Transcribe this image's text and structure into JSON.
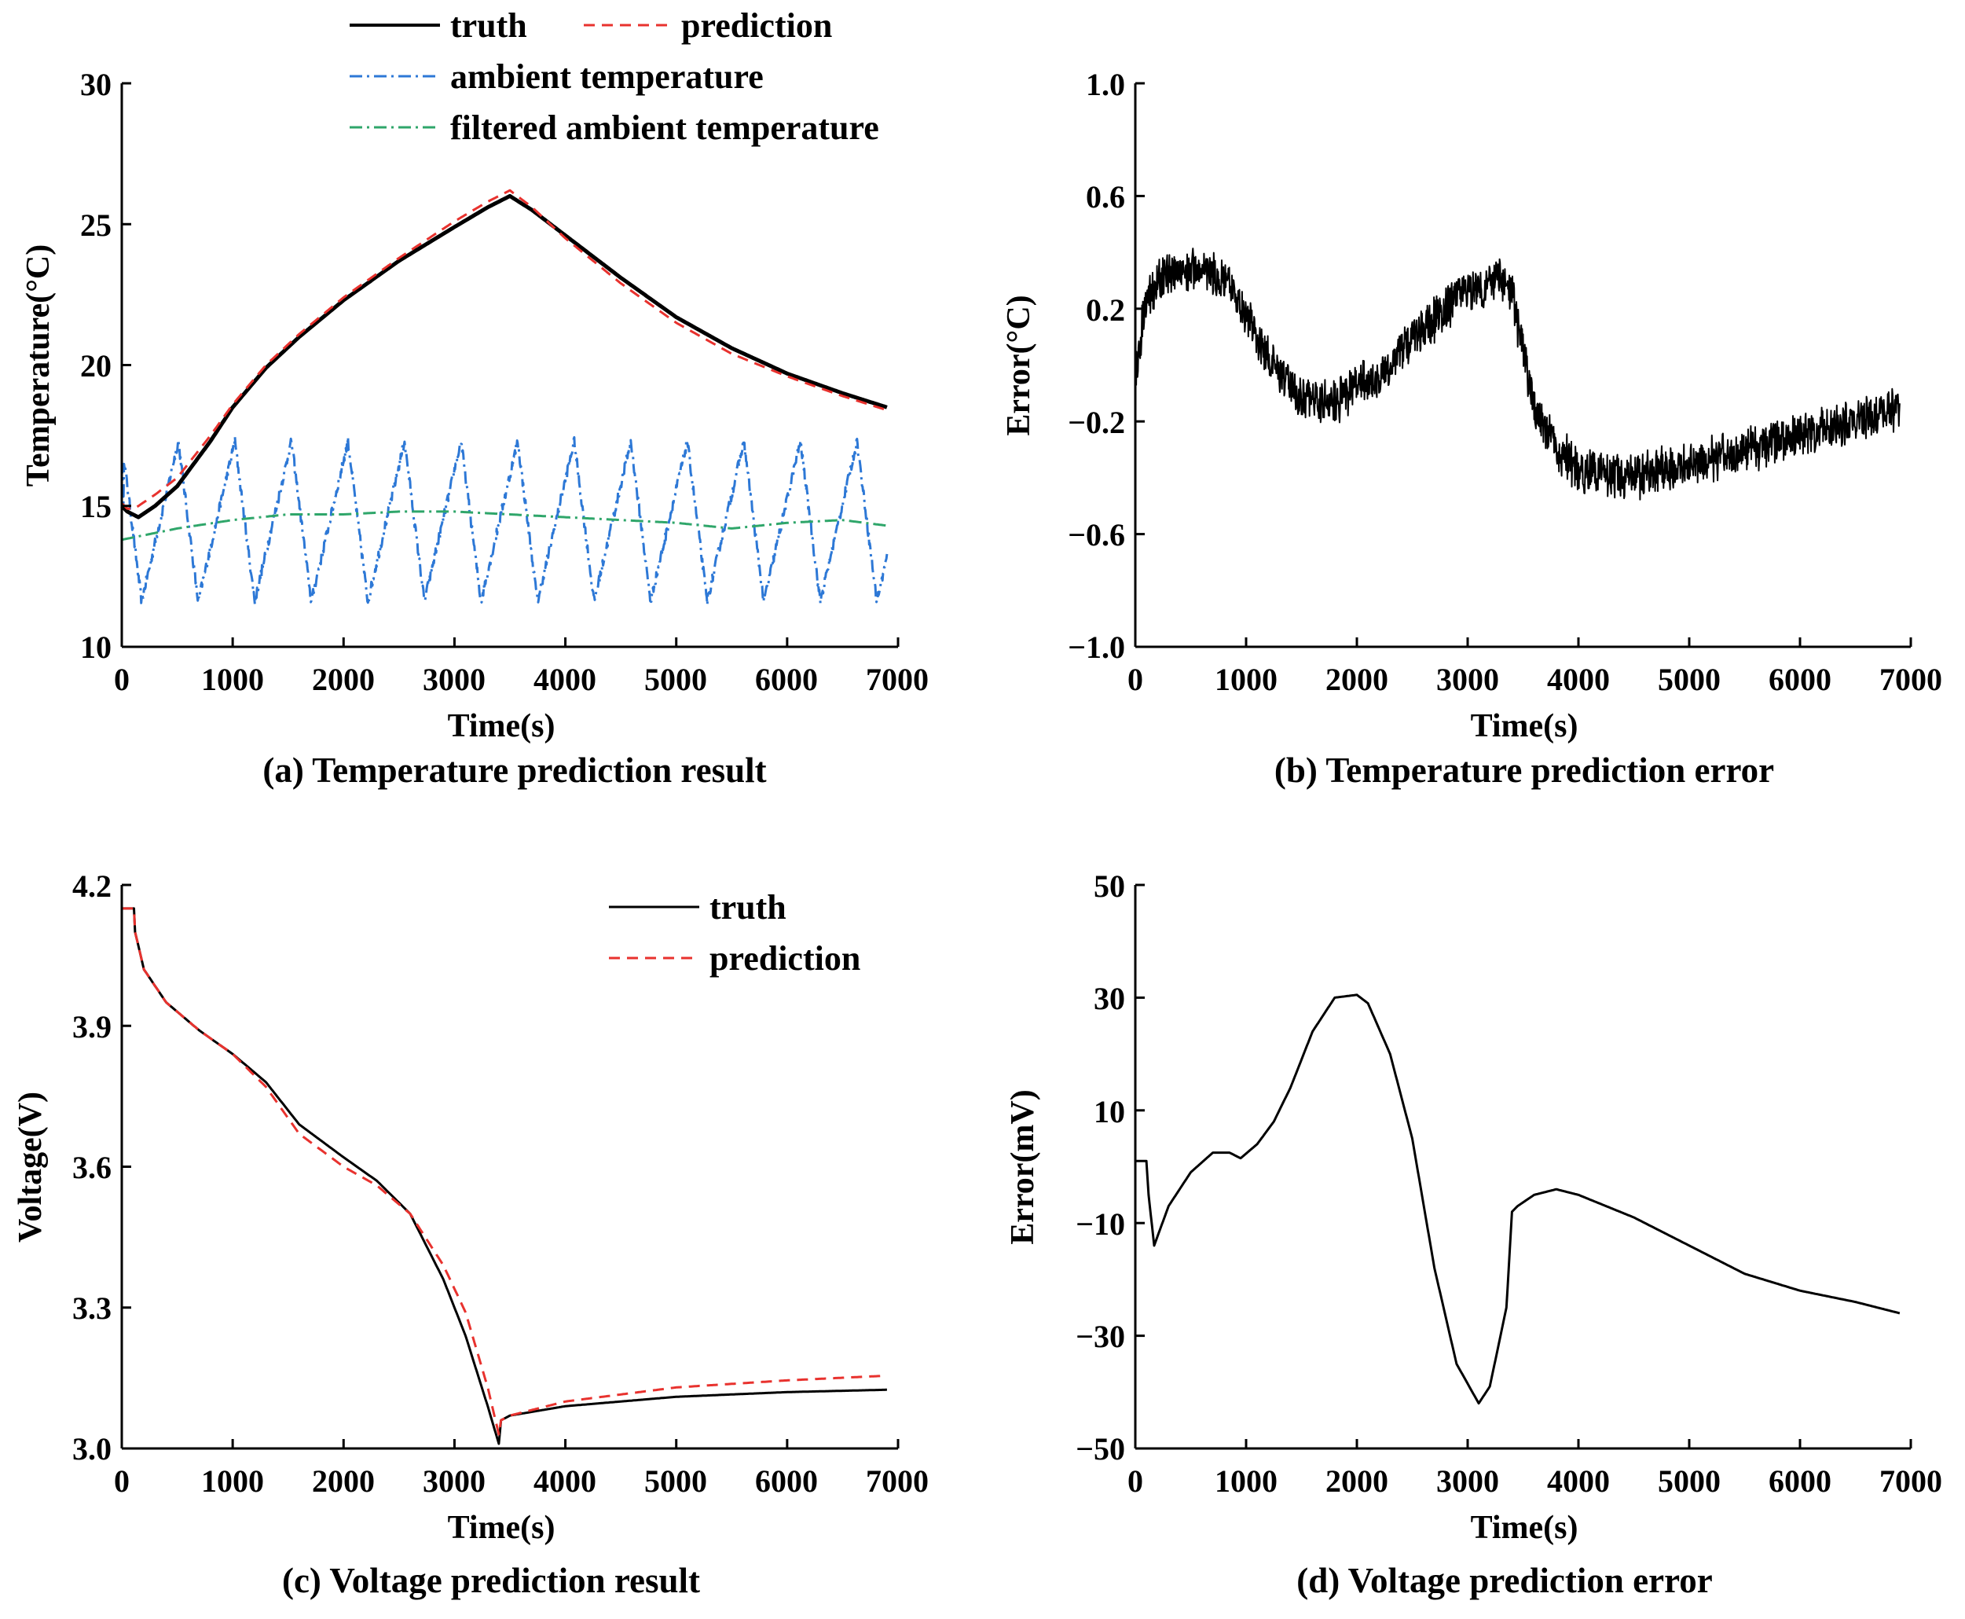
{
  "chart_data": [
    {
      "id": "a",
      "type": "line",
      "caption": "(a) Temperature prediction result",
      "xlabel": "Time(s)",
      "ylabel": "Temperature(°C)",
      "xlim": [
        0,
        7000
      ],
      "ylim": [
        10,
        30
      ],
      "xticks": [
        "0",
        "1000",
        "2000",
        "3000",
        "4000",
        "5000",
        "6000",
        "7000"
      ],
      "yticks": [
        "10",
        "15",
        "20",
        "25",
        "30"
      ],
      "grid": false,
      "legend": "top",
      "series": [
        {
          "name": "truth",
          "color": "#000000",
          "style": "solid",
          "x": [
            0,
            50,
            100,
            150,
            300,
            500,
            800,
            1000,
            1300,
            1600,
            2000,
            2500,
            3000,
            3300,
            3500,
            3700,
            4000,
            4500,
            5000,
            5500,
            6000,
            6500,
            6900
          ],
          "y": [
            15.0,
            14.8,
            14.7,
            14.6,
            15.0,
            15.7,
            17.3,
            18.5,
            19.9,
            21.0,
            22.3,
            23.7,
            24.9,
            25.6,
            26.0,
            25.5,
            24.6,
            23.1,
            21.7,
            20.6,
            19.7,
            19.0,
            18.5
          ]
        },
        {
          "name": "prediction",
          "color": "#e8322e",
          "style": "dashed",
          "x": [
            0,
            50,
            100,
            150,
            300,
            500,
            800,
            1000,
            1300,
            1600,
            2000,
            2500,
            3000,
            3300,
            3500,
            3700,
            4000,
            4500,
            5000,
            5500,
            6000,
            6500,
            6900
          ],
          "y": [
            15.1,
            14.9,
            14.9,
            15.0,
            15.4,
            16.0,
            17.5,
            18.6,
            20.0,
            21.1,
            22.4,
            23.8,
            25.1,
            25.8,
            26.2,
            25.6,
            24.5,
            22.9,
            21.5,
            20.4,
            19.6,
            18.9,
            18.4
          ]
        },
        {
          "name": "ambient temperature",
          "color": "#2d78d6",
          "style": "dashdot",
          "period": 510,
          "peak_x": 510,
          "min": 11.6,
          "max": 17.3,
          "x_end": 6900
        },
        {
          "name": "filtered ambient temperature",
          "color": "#2fa66a",
          "style": "dashdot",
          "x": [
            0,
            500,
            1000,
            1500,
            2000,
            2500,
            3000,
            3500,
            4000,
            4500,
            5000,
            5500,
            6000,
            6500,
            6900
          ],
          "y": [
            13.8,
            14.2,
            14.5,
            14.7,
            14.7,
            14.8,
            14.8,
            14.7,
            14.6,
            14.5,
            14.4,
            14.2,
            14.4,
            14.5,
            14.3
          ]
        }
      ]
    },
    {
      "id": "b",
      "type": "line",
      "caption": "(b) Temperature prediction error",
      "xlabel": "Time(s)",
      "ylabel": "Error(°C)",
      "xlim": [
        0,
        7000
      ],
      "ylim": [
        -1.0,
        1.0
      ],
      "xticks": [
        "0",
        "1000",
        "2000",
        "3000",
        "4000",
        "5000",
        "6000",
        "7000"
      ],
      "yticks": [
        "1.0",
        "0.6",
        "0.2",
        "−0.2",
        "−0.6",
        "−1.0"
      ],
      "ytick_values": [
        1.0,
        0.6,
        0.2,
        -0.2,
        -0.6,
        -1.0
      ],
      "grid": false,
      "series": [
        {
          "name": "error",
          "color": "#000000",
          "style": "solid",
          "noise": 0.05,
          "x": [
            0,
            100,
            300,
            600,
            900,
            1200,
            1500,
            1800,
            2000,
            2200,
            2500,
            2800,
            3000,
            3300,
            3400,
            3600,
            3800,
            4000,
            4500,
            5000,
            5500,
            6000,
            6500,
            6900
          ],
          "y": [
            -0.05,
            0.25,
            0.32,
            0.35,
            0.25,
            0.02,
            -0.12,
            -0.13,
            -0.07,
            -0.05,
            0.1,
            0.2,
            0.27,
            0.3,
            0.25,
            -0.15,
            -0.3,
            -0.37,
            -0.4,
            -0.35,
            -0.3,
            -0.25,
            -0.2,
            -0.15
          ]
        }
      ]
    },
    {
      "id": "c",
      "type": "line",
      "caption": "(c) Voltage prediction result",
      "xlabel": "Time(s)",
      "ylabel": "Voltage(V)",
      "xlim": [
        0,
        7000
      ],
      "ylim": [
        3.0,
        4.2
      ],
      "xticks": [
        "0",
        "1000",
        "2000",
        "3000",
        "4000",
        "5000",
        "6000",
        "7000"
      ],
      "yticks": [
        "3.0",
        "3.3",
        "3.6",
        "3.9",
        "4.2"
      ],
      "ytick_values": [
        3.0,
        3.3,
        3.6,
        3.9,
        4.2
      ],
      "grid": false,
      "legend": "top-right",
      "series": [
        {
          "name": "truth",
          "color": "#000000",
          "style": "solid",
          "x": [
            0,
            110,
            120,
            200,
            400,
            700,
            1000,
            1300,
            1600,
            2000,
            2300,
            2600,
            2900,
            3100,
            3300,
            3400,
            3420,
            3500,
            4000,
            5000,
            6000,
            6900
          ],
          "y": [
            4.15,
            4.15,
            4.1,
            4.02,
            3.95,
            3.89,
            3.84,
            3.78,
            3.69,
            3.62,
            3.57,
            3.5,
            3.36,
            3.24,
            3.09,
            3.01,
            3.06,
            3.07,
            3.09,
            3.11,
            3.12,
            3.125
          ]
        },
        {
          "name": "prediction",
          "color": "#e8322e",
          "style": "dashed",
          "x": [
            0,
            110,
            120,
            200,
            400,
            700,
            1000,
            1300,
            1600,
            2000,
            2300,
            2600,
            2900,
            3100,
            3300,
            3400,
            3420,
            3500,
            4000,
            5000,
            6000,
            6900
          ],
          "y": [
            4.15,
            4.15,
            4.1,
            4.02,
            3.95,
            3.89,
            3.84,
            3.77,
            3.67,
            3.6,
            3.56,
            3.5,
            3.39,
            3.29,
            3.13,
            3.03,
            3.06,
            3.07,
            3.1,
            3.13,
            3.145,
            3.155
          ]
        }
      ]
    },
    {
      "id": "d",
      "type": "line",
      "caption": "(d) Voltage prediction error",
      "xlabel": "Time(s)",
      "ylabel": "Error(mV)",
      "xlim": [
        0,
        7000
      ],
      "ylim": [
        -50,
        50
      ],
      "xticks": [
        "0",
        "1000",
        "2000",
        "3000",
        "4000",
        "5000",
        "6000",
        "7000"
      ],
      "yticks": [
        "50",
        "30",
        "10",
        "−10",
        "−30",
        "−50"
      ],
      "ytick_values": [
        50,
        30,
        10,
        -10,
        -30,
        -50
      ],
      "grid": false,
      "series": [
        {
          "name": "error",
          "color": "#000000",
          "style": "solid",
          "x": [
            0,
            100,
            120,
            170,
            300,
            500,
            700,
            850,
            950,
            1100,
            1250,
            1400,
            1600,
            1800,
            2000,
            2100,
            2300,
            2500,
            2700,
            2900,
            3100,
            3200,
            3350,
            3400,
            3450,
            3600,
            3800,
            4000,
            4500,
            5000,
            5500,
            6000,
            6500,
            6900
          ],
          "y": [
            1,
            1,
            -5,
            -14,
            -7,
            -1,
            2.5,
            2.5,
            1.5,
            4,
            8,
            14,
            24,
            30,
            30.5,
            29,
            20,
            5,
            -18,
            -35,
            -42,
            -39,
            -25,
            -8,
            -7,
            -5,
            -4,
            -5,
            -9,
            -14,
            -19,
            -22,
            -24,
            -26
          ]
        }
      ]
    }
  ]
}
